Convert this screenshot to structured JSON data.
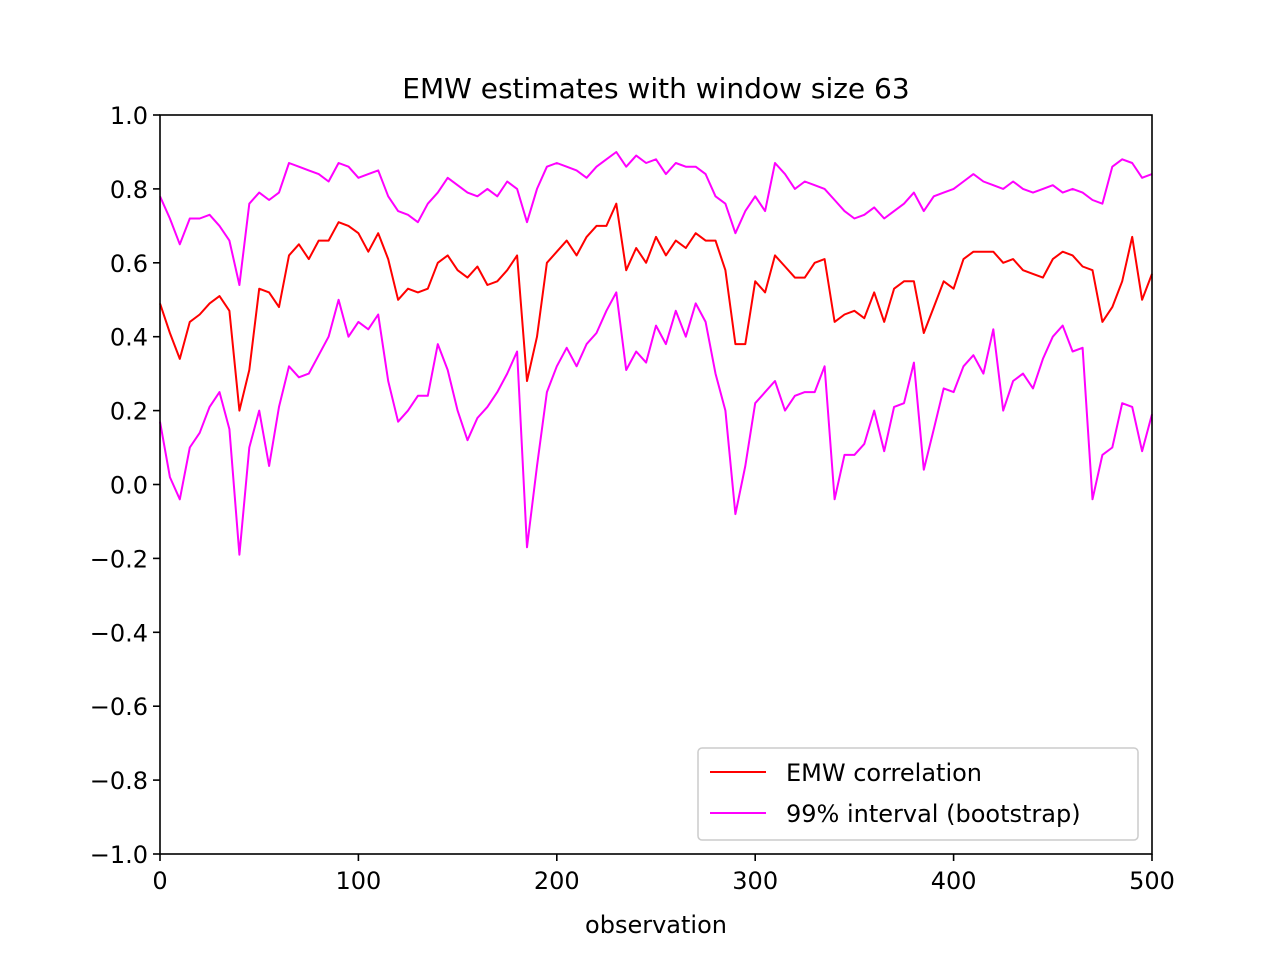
{
  "chart_data": {
    "type": "line",
    "title": "EMW estimates with window size 63",
    "xlabel": "observation",
    "ylabel": "",
    "xlim": [
      0,
      500
    ],
    "ylim": [
      -1.0,
      1.0
    ],
    "xticks": [
      "0",
      "100",
      "200",
      "300",
      "400",
      "500"
    ],
    "yticks": [
      "−1.0",
      "−0.8",
      "−0.6",
      "−0.4",
      "−0.2",
      "0.0",
      "0.2",
      "0.4",
      "0.6",
      "0.8",
      "1.0"
    ],
    "grid": false,
    "legend_position": "lower-right",
    "legend": [
      "EMW correlation",
      "99% interval (bootstrap)"
    ],
    "colors": {
      "correlation": "#ff0000",
      "interval": "#ff00ff"
    },
    "series": [
      {
        "name": "EMW correlation",
        "role": "estimate",
        "color": "#ff0000",
        "x": [
          0,
          5,
          10,
          15,
          20,
          25,
          30,
          35,
          40,
          45,
          50,
          55,
          60,
          65,
          70,
          75,
          80,
          85,
          90,
          95,
          100,
          105,
          110,
          115,
          120,
          125,
          130,
          135,
          140,
          145,
          150,
          155,
          160,
          165,
          170,
          175,
          180,
          185,
          190,
          195,
          200,
          205,
          210,
          215,
          220,
          225,
          230,
          235,
          240,
          245,
          250,
          255,
          260,
          265,
          270,
          275,
          280,
          285,
          290,
          295,
          300,
          305,
          310,
          315,
          320,
          325,
          330,
          335,
          340,
          345,
          350,
          355,
          360,
          365,
          370,
          375,
          380,
          385,
          390,
          395,
          400,
          405,
          410,
          415,
          420,
          425,
          430,
          435,
          440,
          445,
          450,
          455,
          460,
          465,
          470,
          475,
          480,
          485,
          490,
          495,
          500
        ],
        "values": [
          0.49,
          0.41,
          0.34,
          0.44,
          0.46,
          0.49,
          0.51,
          0.47,
          0.2,
          0.31,
          0.53,
          0.52,
          0.48,
          0.62,
          0.65,
          0.61,
          0.66,
          0.66,
          0.71,
          0.7,
          0.68,
          0.63,
          0.68,
          0.61,
          0.5,
          0.53,
          0.52,
          0.53,
          0.6,
          0.62,
          0.58,
          0.56,
          0.59,
          0.54,
          0.55,
          0.58,
          0.62,
          0.28,
          0.4,
          0.6,
          0.63,
          0.66,
          0.62,
          0.67,
          0.7,
          0.7,
          0.76,
          0.58,
          0.64,
          0.6,
          0.67,
          0.62,
          0.66,
          0.64,
          0.68,
          0.66,
          0.66,
          0.58,
          0.38,
          0.38,
          0.55,
          0.52,
          0.62,
          0.59,
          0.56,
          0.56,
          0.6,
          0.61,
          0.44,
          0.46,
          0.47,
          0.45,
          0.52,
          0.44,
          0.53,
          0.55,
          0.55,
          0.41,
          0.48,
          0.55,
          0.53,
          0.61,
          0.63,
          0.63,
          0.63,
          0.6,
          0.61,
          0.58,
          0.57,
          0.56,
          0.61,
          0.63,
          0.62,
          0.59,
          0.58,
          0.44,
          0.48,
          0.55,
          0.67,
          0.5,
          0.57
        ]
      },
      {
        "name": "99% interval (bootstrap)",
        "role": "upper",
        "color": "#ff00ff",
        "x": [
          0,
          5,
          10,
          15,
          20,
          25,
          30,
          35,
          40,
          45,
          50,
          55,
          60,
          65,
          70,
          75,
          80,
          85,
          90,
          95,
          100,
          105,
          110,
          115,
          120,
          125,
          130,
          135,
          140,
          145,
          150,
          155,
          160,
          165,
          170,
          175,
          180,
          185,
          190,
          195,
          200,
          205,
          210,
          215,
          220,
          225,
          230,
          235,
          240,
          245,
          250,
          255,
          260,
          265,
          270,
          275,
          280,
          285,
          290,
          295,
          300,
          305,
          310,
          315,
          320,
          325,
          330,
          335,
          340,
          345,
          350,
          355,
          360,
          365,
          370,
          375,
          380,
          385,
          390,
          395,
          400,
          405,
          410,
          415,
          420,
          425,
          430,
          435,
          440,
          445,
          450,
          455,
          460,
          465,
          470,
          475,
          480,
          485,
          490,
          495,
          500
        ],
        "values": [
          0.78,
          0.72,
          0.65,
          0.72,
          0.72,
          0.73,
          0.7,
          0.66,
          0.54,
          0.76,
          0.79,
          0.77,
          0.79,
          0.87,
          0.86,
          0.85,
          0.84,
          0.82,
          0.87,
          0.86,
          0.83,
          0.84,
          0.85,
          0.78,
          0.74,
          0.73,
          0.71,
          0.76,
          0.79,
          0.83,
          0.81,
          0.79,
          0.78,
          0.8,
          0.78,
          0.82,
          0.8,
          0.71,
          0.8,
          0.86,
          0.87,
          0.86,
          0.85,
          0.83,
          0.86,
          0.88,
          0.9,
          0.86,
          0.89,
          0.87,
          0.88,
          0.84,
          0.87,
          0.86,
          0.86,
          0.84,
          0.78,
          0.76,
          0.68,
          0.74,
          0.78,
          0.74,
          0.87,
          0.84,
          0.8,
          0.82,
          0.81,
          0.8,
          0.77,
          0.74,
          0.72,
          0.73,
          0.75,
          0.72,
          0.74,
          0.76,
          0.79,
          0.74,
          0.78,
          0.79,
          0.8,
          0.82,
          0.84,
          0.82,
          0.81,
          0.8,
          0.82,
          0.8,
          0.79,
          0.8,
          0.81,
          0.79,
          0.8,
          0.79,
          0.77,
          0.76,
          0.86,
          0.88,
          0.87,
          0.83,
          0.84
        ]
      },
      {
        "name": "99% interval (bootstrap)",
        "role": "lower",
        "color": "#ff00ff",
        "x": [
          0,
          5,
          10,
          15,
          20,
          25,
          30,
          35,
          40,
          45,
          50,
          55,
          60,
          65,
          70,
          75,
          80,
          85,
          90,
          95,
          100,
          105,
          110,
          115,
          120,
          125,
          130,
          135,
          140,
          145,
          150,
          155,
          160,
          165,
          170,
          175,
          180,
          185,
          190,
          195,
          200,
          205,
          210,
          215,
          220,
          225,
          230,
          235,
          240,
          245,
          250,
          255,
          260,
          265,
          270,
          275,
          280,
          285,
          290,
          295,
          300,
          305,
          310,
          315,
          320,
          325,
          330,
          335,
          340,
          345,
          350,
          355,
          360,
          365,
          370,
          375,
          380,
          385,
          390,
          395,
          400,
          405,
          410,
          415,
          420,
          425,
          430,
          435,
          440,
          445,
          450,
          455,
          460,
          465,
          470,
          475,
          480,
          485,
          490,
          495,
          500
        ],
        "values": [
          0.17,
          0.02,
          -0.04,
          0.1,
          0.14,
          0.21,
          0.25,
          0.15,
          -0.19,
          0.1,
          0.2,
          0.05,
          0.21,
          0.32,
          0.29,
          0.3,
          0.35,
          0.4,
          0.5,
          0.4,
          0.44,
          0.42,
          0.46,
          0.28,
          0.17,
          0.2,
          0.24,
          0.24,
          0.38,
          0.31,
          0.2,
          0.12,
          0.18,
          0.21,
          0.25,
          0.3,
          0.36,
          -0.17,
          0.05,
          0.25,
          0.32,
          0.37,
          0.32,
          0.38,
          0.41,
          0.47,
          0.52,
          0.31,
          0.36,
          0.33,
          0.43,
          0.38,
          0.47,
          0.4,
          0.49,
          0.44,
          0.3,
          0.2,
          -0.08,
          0.05,
          0.22,
          0.25,
          0.28,
          0.2,
          0.24,
          0.25,
          0.25,
          0.32,
          -0.04,
          0.08,
          0.08,
          0.11,
          0.2,
          0.09,
          0.21,
          0.22,
          0.33,
          0.04,
          0.15,
          0.26,
          0.25,
          0.32,
          0.35,
          0.3,
          0.42,
          0.2,
          0.28,
          0.3,
          0.26,
          0.34,
          0.4,
          0.43,
          0.36,
          0.37,
          -0.04,
          0.08,
          0.1,
          0.22,
          0.21,
          0.09,
          0.19
        ]
      }
    ]
  }
}
